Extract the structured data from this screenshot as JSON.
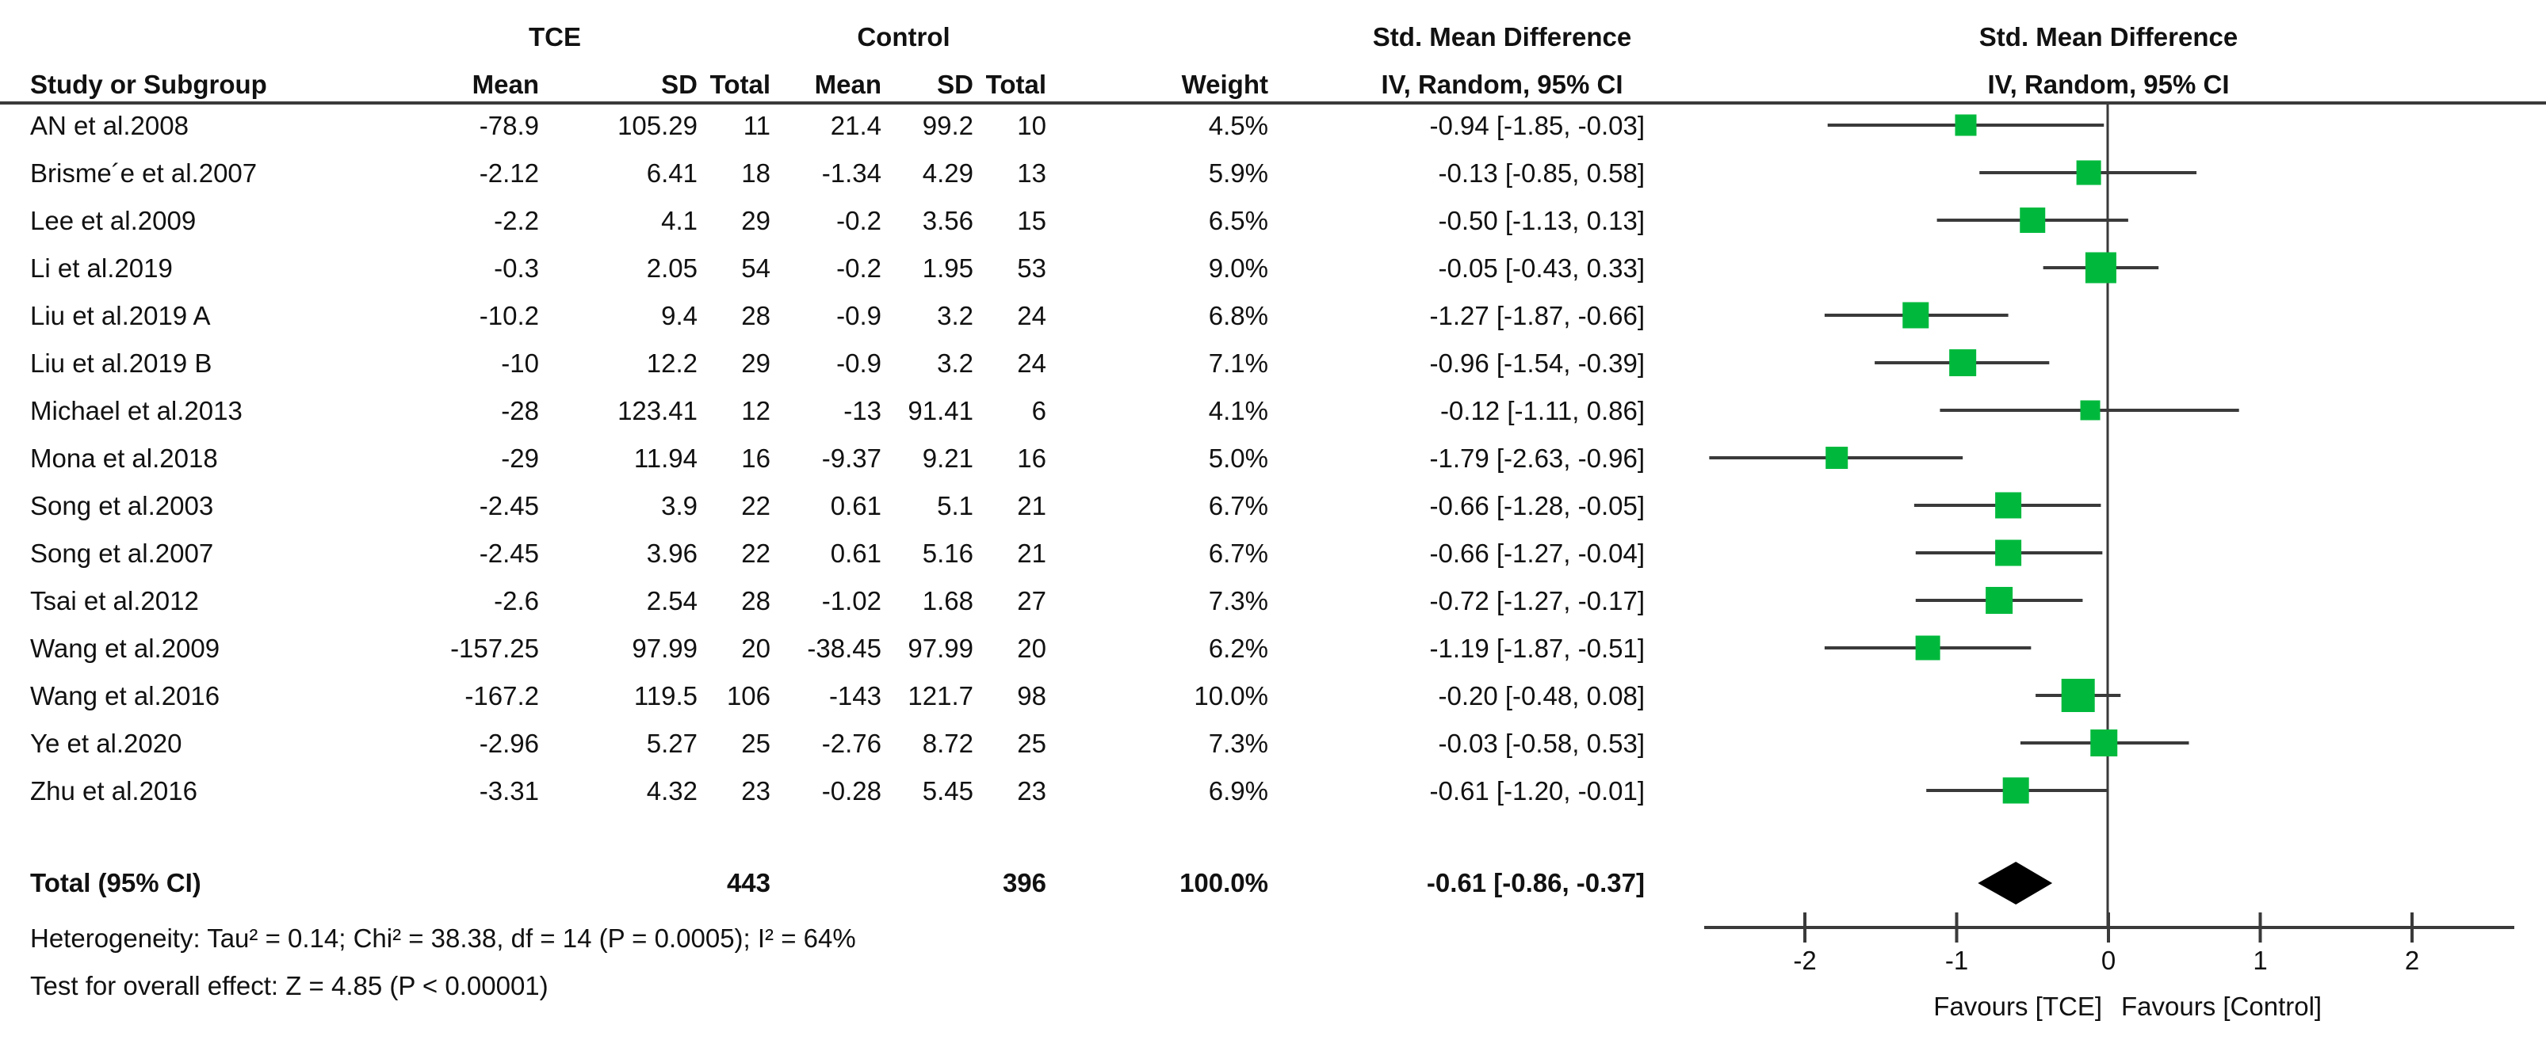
{
  "chart_data": {
    "type": "scatter",
    "subtype": "forest-plot",
    "title_left_line1": "Std. Mean Difference",
    "title_left_line2": "IV, Random, 95% CI",
    "title_right_line1": "Std. Mean Difference",
    "title_right_line2": "IV, Random, 95% CI",
    "group1_label": "TCE",
    "group2_label": "Control",
    "col_study": "Study or Subgroup",
    "col_mean": "Mean",
    "col_sd": "SD",
    "col_total": "Total",
    "col_weight": "Weight",
    "xlabel_left": "Favours [TCE]",
    "xlabel_right": "Favours [Control]",
    "x_ticks": [
      "-2",
      "-1",
      "0",
      "1",
      "2"
    ],
    "x_tick_values": [
      -2,
      -1,
      0,
      1,
      2
    ],
    "xlim": [
      -2.65,
      2.65
    ],
    "marker_color": "#00b93c",
    "line_color": "#3a3a3a",
    "rows": [
      {
        "study": "AN et al.2008",
        "mean1": "-78.9",
        "sd1": "105.29",
        "total1": "11",
        "mean2": "21.4",
        "sd2": "99.2",
        "total2": "10",
        "weight": "4.5%",
        "weight_val": 4.5,
        "ci": "-0.94 [-1.85, -0.03]",
        "est": -0.94,
        "lo": -1.85,
        "hi": -0.03
      },
      {
        "study": "Brisme´e et al.2007",
        "mean1": "-2.12",
        "sd1": "6.41",
        "total1": "18",
        "mean2": "-1.34",
        "sd2": "4.29",
        "total2": "13",
        "weight": "5.9%",
        "weight_val": 5.9,
        "ci": "-0.13 [-0.85, 0.58]",
        "est": -0.13,
        "lo": -0.85,
        "hi": 0.58
      },
      {
        "study": "Lee et al.2009",
        "mean1": "-2.2",
        "sd1": "4.1",
        "total1": "29",
        "mean2": "-0.2",
        "sd2": "3.56",
        "total2": "15",
        "weight": "6.5%",
        "weight_val": 6.5,
        "ci": "-0.50 [-1.13, 0.13]",
        "est": -0.5,
        "lo": -1.13,
        "hi": 0.13
      },
      {
        "study": "Li et al.2019",
        "mean1": "-0.3",
        "sd1": "2.05",
        "total1": "54",
        "mean2": "-0.2",
        "sd2": "1.95",
        "total2": "53",
        "weight": "9.0%",
        "weight_val": 9.0,
        "ci": "-0.05 [-0.43, 0.33]",
        "est": -0.05,
        "lo": -0.43,
        "hi": 0.33
      },
      {
        "study": "Liu et al.2019 A",
        "mean1": "-10.2",
        "sd1": "9.4",
        "total1": "28",
        "mean2": "-0.9",
        "sd2": "3.2",
        "total2": "24",
        "weight": "6.8%",
        "weight_val": 6.8,
        "ci": "-1.27 [-1.87, -0.66]",
        "est": -1.27,
        "lo": -1.87,
        "hi": -0.66
      },
      {
        "study": "Liu et al.2019 B",
        "mean1": "-10",
        "sd1": "12.2",
        "total1": "29",
        "mean2": "-0.9",
        "sd2": "3.2",
        "total2": "24",
        "weight": "7.1%",
        "weight_val": 7.1,
        "ci": "-0.96 [-1.54, -0.39]",
        "est": -0.96,
        "lo": -1.54,
        "hi": -0.39
      },
      {
        "study": "Michael et al.2013",
        "mean1": "-28",
        "sd1": "123.41",
        "total1": "12",
        "mean2": "-13",
        "sd2": "91.41",
        "total2": "6",
        "weight": "4.1%",
        "weight_val": 4.1,
        "ci": "-0.12 [-1.11, 0.86]",
        "est": -0.12,
        "lo": -1.11,
        "hi": 0.86
      },
      {
        "study": "Mona et al.2018",
        "mean1": "-29",
        "sd1": "11.94",
        "total1": "16",
        "mean2": "-9.37",
        "sd2": "9.21",
        "total2": "16",
        "weight": "5.0%",
        "weight_val": 5.0,
        "ci": "-1.79 [-2.63, -0.96]",
        "est": -1.79,
        "lo": -2.63,
        "hi": -0.96
      },
      {
        "study": "Song et al.2003",
        "mean1": "-2.45",
        "sd1": "3.9",
        "total1": "22",
        "mean2": "0.61",
        "sd2": "5.1",
        "total2": "21",
        "weight": "6.7%",
        "weight_val": 6.7,
        "ci": "-0.66 [-1.28, -0.05]",
        "est": -0.66,
        "lo": -1.28,
        "hi": -0.05
      },
      {
        "study": "Song et al.2007",
        "mean1": "-2.45",
        "sd1": "3.96",
        "total1": "22",
        "mean2": "0.61",
        "sd2": "5.16",
        "total2": "21",
        "weight": "6.7%",
        "weight_val": 6.7,
        "ci": "-0.66 [-1.27, -0.04]",
        "est": -0.66,
        "lo": -1.27,
        "hi": -0.04
      },
      {
        "study": "Tsai et al.2012",
        "mean1": "-2.6",
        "sd1": "2.54",
        "total1": "28",
        "mean2": "-1.02",
        "sd2": "1.68",
        "total2": "27",
        "weight": "7.3%",
        "weight_val": 7.3,
        "ci": "-0.72 [-1.27, -0.17]",
        "est": -0.72,
        "lo": -1.27,
        "hi": -0.17
      },
      {
        "study": "Wang et al.2009",
        "mean1": "-157.25",
        "sd1": "97.99",
        "total1": "20",
        "mean2": "-38.45",
        "sd2": "97.99",
        "total2": "20",
        "weight": "6.2%",
        "weight_val": 6.2,
        "ci": "-1.19 [-1.87, -0.51]",
        "est": -1.19,
        "lo": -1.87,
        "hi": -0.51
      },
      {
        "study": "Wang et al.2016",
        "mean1": "-167.2",
        "sd1": "119.5",
        "total1": "106",
        "mean2": "-143",
        "sd2": "121.7",
        "total2": "98",
        "weight": "10.0%",
        "weight_val": 10.0,
        "ci": "-0.20 [-0.48, 0.08]",
        "est": -0.2,
        "lo": -0.48,
        "hi": 0.08
      },
      {
        "study": "Ye et al.2020",
        "mean1": "-2.96",
        "sd1": "5.27",
        "total1": "25",
        "mean2": "-2.76",
        "sd2": "8.72",
        "total2": "25",
        "weight": "7.3%",
        "weight_val": 7.3,
        "ci": "-0.03 [-0.58, 0.53]",
        "est": -0.03,
        "lo": -0.58,
        "hi": 0.53
      },
      {
        "study": "Zhu et al.2016",
        "mean1": "-3.31",
        "sd1": "4.32",
        "total1": "23",
        "mean2": "-0.28",
        "sd2": "5.45",
        "total2": "23",
        "weight": "6.9%",
        "weight_val": 6.9,
        "ci": "-0.61 [-1.20, -0.01]",
        "est": -0.61,
        "lo": -1.2,
        "hi": -0.01
      }
    ],
    "total": {
      "label": "Total (95% CI)",
      "total1": "443",
      "total2": "396",
      "weight": "100.0%",
      "ci": "-0.61 [-0.86, -0.37]",
      "est": -0.61,
      "lo": -0.86,
      "hi": -0.37
    },
    "heterogeneity": "Heterogeneity: Tau² = 0.14; Chi² = 38.38, df = 14 (P = 0.0005); I² = 64%",
    "overall_effect": "Test for overall effect: Z = 4.85 (P < 0.00001)"
  }
}
